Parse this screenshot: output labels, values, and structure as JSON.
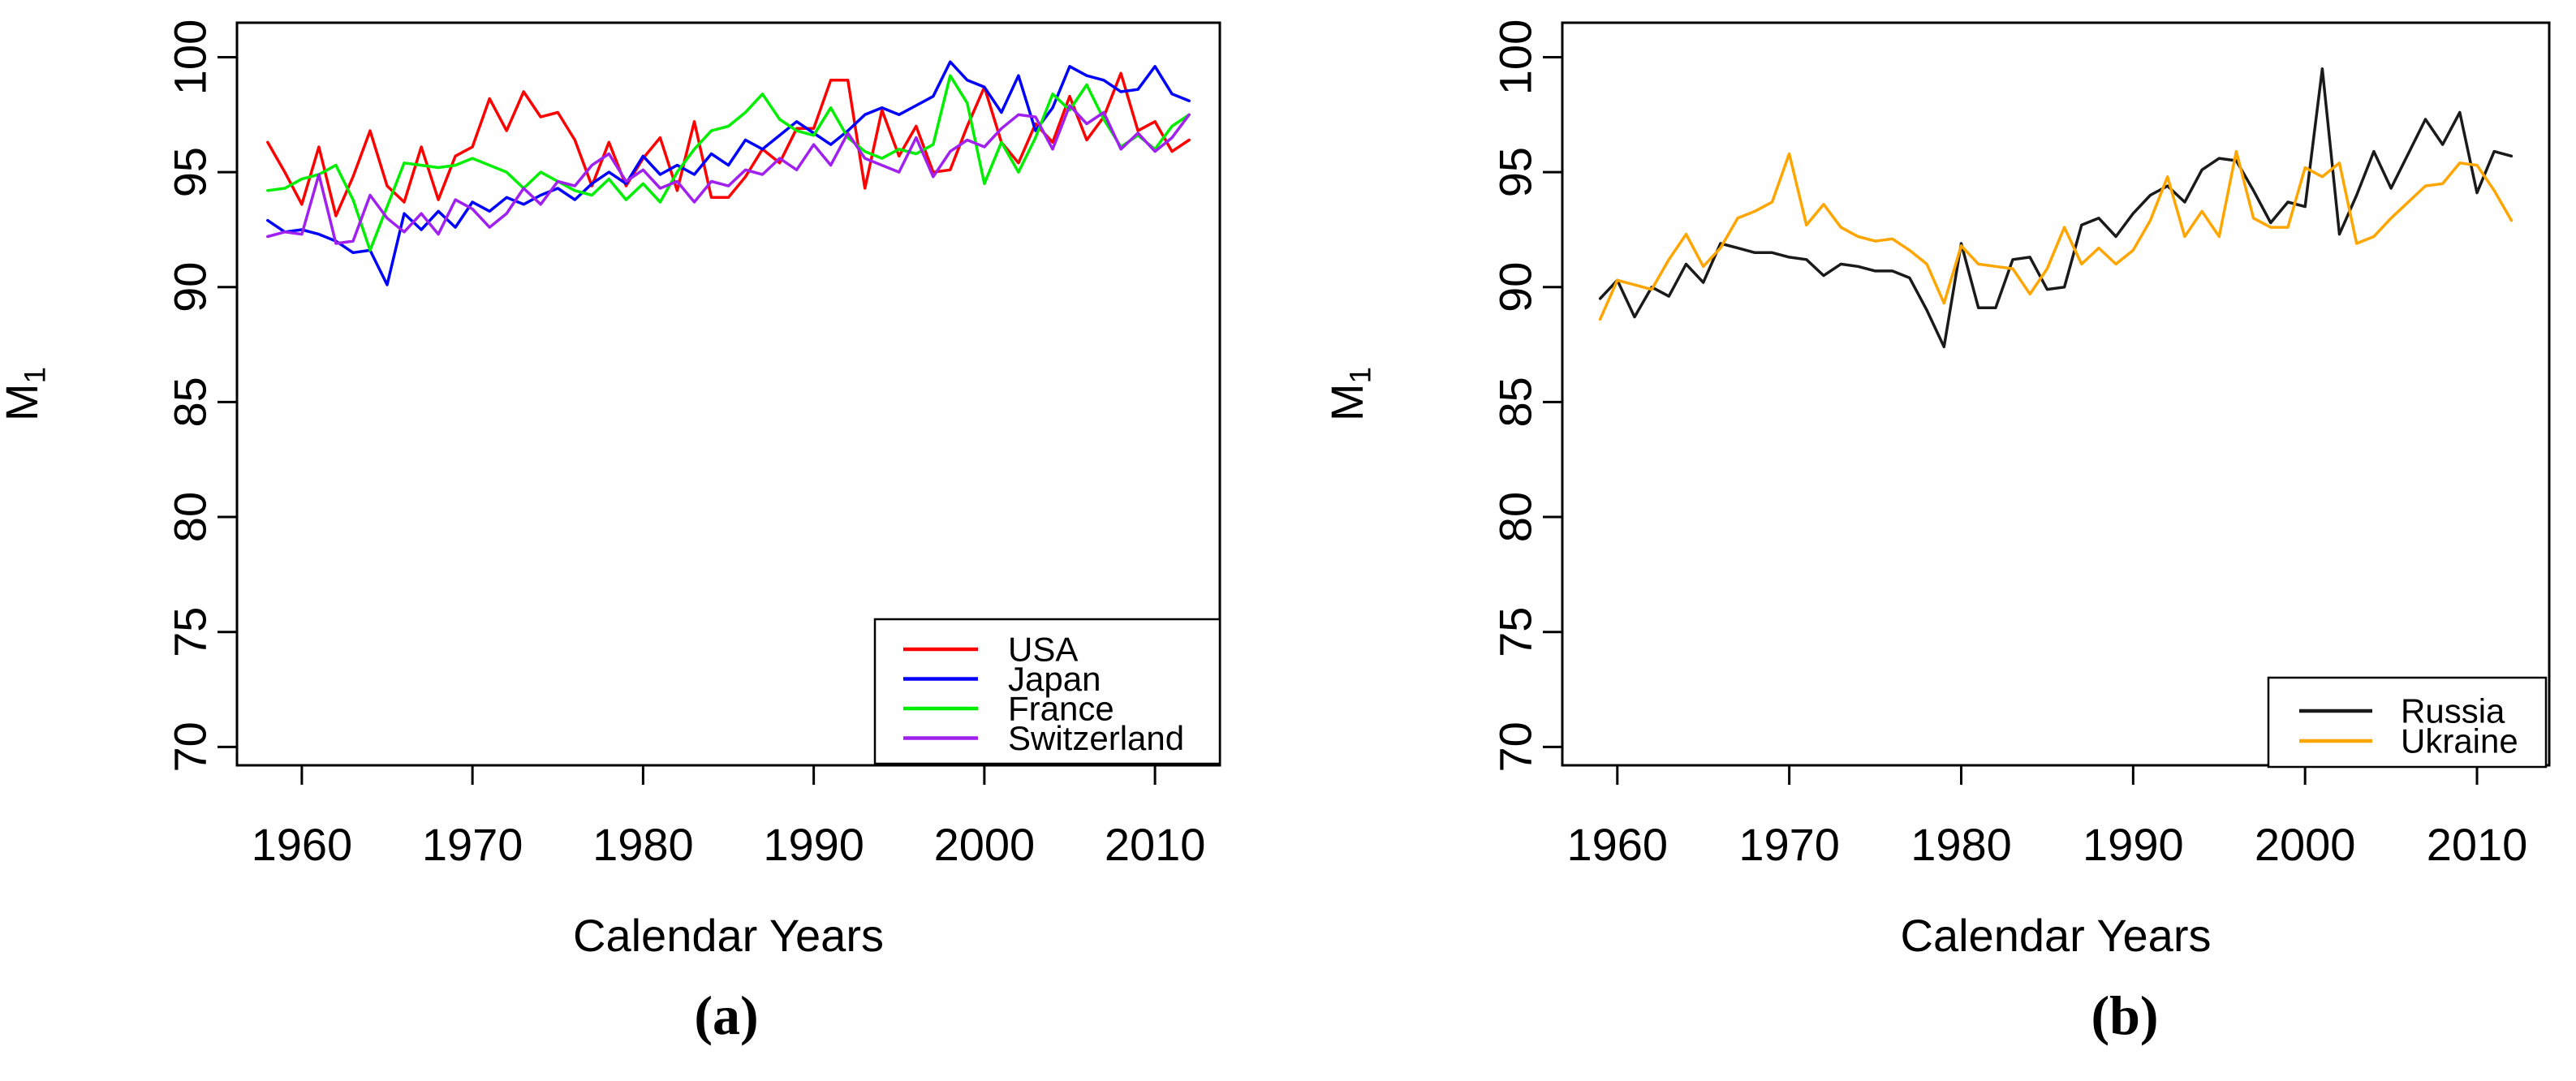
{
  "figure": {
    "background": "#FFFFFF",
    "description": "Two side-by-side R-style line charts of modal age M1 by calendar year"
  },
  "chart_data": [
    {
      "id": "a",
      "type": "line",
      "caption": "(a)",
      "xlabel": "Calendar Years",
      "ylabel": {
        "main": "M",
        "sub": "1"
      },
      "x_start_year": 1958,
      "xlim": [
        1956.2,
        2013.8
      ],
      "ylim": [
        69.2,
        101.5
      ],
      "xticks": [
        1960,
        1970,
        1980,
        1990,
        2000,
        2010
      ],
      "yticks": [
        70,
        75,
        80,
        85,
        90,
        95,
        100
      ],
      "grid": false,
      "legend_position": "bottom-right-inside",
      "series": [
        {
          "name": "USA",
          "color": "#FF0000",
          "values": [
            96.3,
            95.0,
            93.6,
            96.1,
            93.1,
            94.8,
            96.8,
            94.4,
            93.7,
            96.1,
            93.8,
            95.7,
            96.1,
            98.2,
            96.8,
            98.5,
            97.4,
            97.6,
            96.4,
            94.4,
            96.3,
            94.4,
            95.6,
            96.5,
            94.2,
            97.2,
            93.9,
            93.9,
            94.8,
            96.0,
            95.4,
            96.9,
            96.9,
            99.0,
            99.0,
            94.3,
            97.7,
            95.7,
            97.0,
            95.0,
            95.1,
            97.0,
            98.7,
            96.3,
            95.4,
            97.1,
            96.3,
            98.3,
            96.4,
            97.4,
            99.3,
            96.8,
            97.2,
            95.9,
            96.4
          ]
        },
        {
          "name": "Japan",
          "color": "#0000FF",
          "values": [
            92.9,
            92.4,
            92.5,
            92.3,
            92.0,
            91.5,
            91.6,
            90.1,
            93.2,
            92.5,
            93.3,
            92.6,
            93.7,
            93.3,
            93.9,
            93.6,
            94.0,
            94.3,
            93.8,
            94.5,
            95.0,
            94.5,
            95.7,
            94.9,
            95.3,
            94.9,
            95.8,
            95.3,
            96.4,
            96.0,
            96.6,
            97.2,
            96.7,
            96.2,
            96.8,
            97.5,
            97.8,
            97.5,
            97.9,
            98.3,
            99.8,
            99.0,
            98.7,
            97.6,
            99.2,
            96.8,
            97.8,
            99.6,
            99.2,
            99.0,
            98.5,
            98.6,
            99.6,
            98.4,
            98.1
          ]
        },
        {
          "name": "France",
          "color": "#00EE00",
          "values": [
            94.2,
            94.3,
            94.7,
            94.9,
            95.3,
            93.8,
            91.6,
            93.5,
            95.4,
            95.3,
            95.2,
            95.3,
            95.6,
            95.3,
            95.0,
            94.3,
            95.0,
            94.6,
            94.2,
            94.0,
            94.7,
            93.8,
            94.5,
            93.7,
            95.0,
            96.0,
            96.8,
            97.0,
            97.6,
            98.4,
            97.3,
            96.8,
            96.6,
            97.8,
            96.5,
            95.9,
            95.6,
            96.0,
            95.8,
            96.2,
            99.2,
            98.0,
            94.5,
            96.3,
            95.0,
            96.5,
            98.4,
            97.7,
            98.8,
            97.3,
            96.1,
            96.6,
            96.0,
            97.0,
            97.5
          ]
        },
        {
          "name": "Switzerland",
          "color": "#A020F0",
          "values": [
            92.2,
            92.4,
            92.3,
            94.9,
            91.9,
            92.0,
            94.0,
            93.0,
            92.4,
            93.2,
            92.3,
            93.8,
            93.4,
            92.6,
            93.2,
            94.3,
            93.6,
            94.6,
            94.4,
            95.3,
            95.8,
            94.6,
            95.1,
            94.3,
            94.6,
            93.7,
            94.6,
            94.4,
            95.1,
            94.9,
            95.6,
            95.1,
            96.2,
            95.3,
            96.7,
            95.6,
            95.3,
            95.0,
            96.5,
            94.8,
            95.9,
            96.4,
            96.1,
            96.9,
            97.5,
            97.4,
            96.0,
            97.9,
            97.1,
            97.6,
            96.0,
            96.7,
            95.9,
            96.5,
            97.5
          ]
        }
      ]
    },
    {
      "id": "b",
      "type": "line",
      "caption": "(b)",
      "xlabel": "Calendar Years",
      "ylabel": {
        "main": "M",
        "sub": "1"
      },
      "x_start_year": 1959,
      "xlim": [
        1956.8,
        2014.2
      ],
      "ylim": [
        69.2,
        101.5
      ],
      "xticks": [
        1960,
        1970,
        1980,
        1990,
        2000,
        2010
      ],
      "yticks": [
        70,
        75,
        80,
        85,
        90,
        95,
        100
      ],
      "grid": false,
      "legend_position": "bottom-right-inside",
      "series": [
        {
          "name": "Russia",
          "color": "#1A1A1A",
          "values": [
            89.5,
            90.3,
            88.7,
            90.0,
            89.6,
            91.0,
            90.2,
            91.9,
            91.7,
            91.5,
            91.5,
            91.3,
            91.2,
            90.5,
            91.0,
            90.9,
            90.7,
            90.7,
            90.4,
            89.0,
            87.4,
            91.9,
            89.1,
            89.1,
            91.2,
            91.3,
            89.9,
            90.0,
            92.7,
            93.0,
            92.2,
            93.2,
            94.0,
            94.4,
            93.7,
            95.1,
            95.6,
            95.5,
            94.2,
            92.8,
            93.7,
            93.5,
            99.5,
            92.3,
            94.0,
            95.9,
            94.3,
            95.8,
            97.3,
            96.2,
            97.6,
            94.1,
            95.9,
            95.7
          ]
        },
        {
          "name": "Ukraine",
          "color": "#FFA500",
          "values": [
            88.6,
            90.3,
            90.1,
            89.9,
            91.2,
            92.3,
            90.9,
            91.7,
            93.0,
            93.3,
            93.7,
            95.8,
            92.7,
            93.6,
            92.6,
            92.2,
            92.0,
            92.1,
            91.6,
            91.0,
            89.3,
            91.8,
            91.0,
            90.9,
            90.8,
            89.7,
            90.8,
            92.6,
            91.0,
            91.7,
            91.0,
            91.6,
            92.9,
            94.8,
            92.2,
            93.3,
            92.2,
            95.9,
            93.0,
            92.6,
            92.6,
            95.2,
            94.8,
            95.4,
            91.9,
            92.2,
            93.0,
            93.7,
            94.4,
            94.5,
            95.4,
            95.3,
            94.2,
            92.9
          ]
        }
      ]
    }
  ]
}
